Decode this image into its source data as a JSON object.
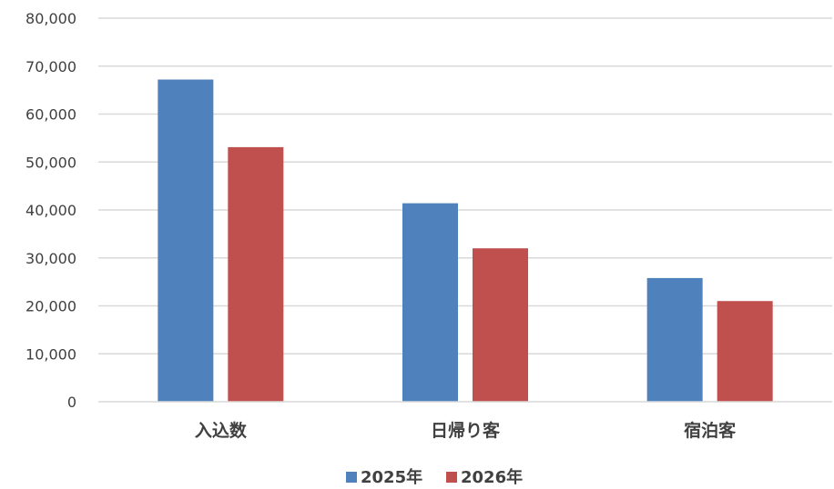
{
  "chart_data": {
    "type": "bar",
    "categories": [
      "入込数",
      "日帰り客",
      "宿泊客"
    ],
    "series": [
      {
        "name": "2025年",
        "color": "#4F81BD",
        "values": [
          67200,
          41400,
          25800
        ]
      },
      {
        "name": "2026年",
        "color": "#C0504D",
        "values": [
          53100,
          32000,
          21000
        ]
      }
    ],
    "ylim": [
      0,
      80000
    ],
    "yticks": [
      0,
      10000,
      20000,
      30000,
      40000,
      50000,
      60000,
      70000,
      80000
    ],
    "ytick_labels": [
      "0",
      "10,000",
      "20,000",
      "30,000",
      "40,000",
      "50,000",
      "60,000",
      "70,000",
      "80,000"
    ],
    "grid": true,
    "legend_position": "bottom",
    "title": "",
    "xlabel": "",
    "ylabel": ""
  }
}
